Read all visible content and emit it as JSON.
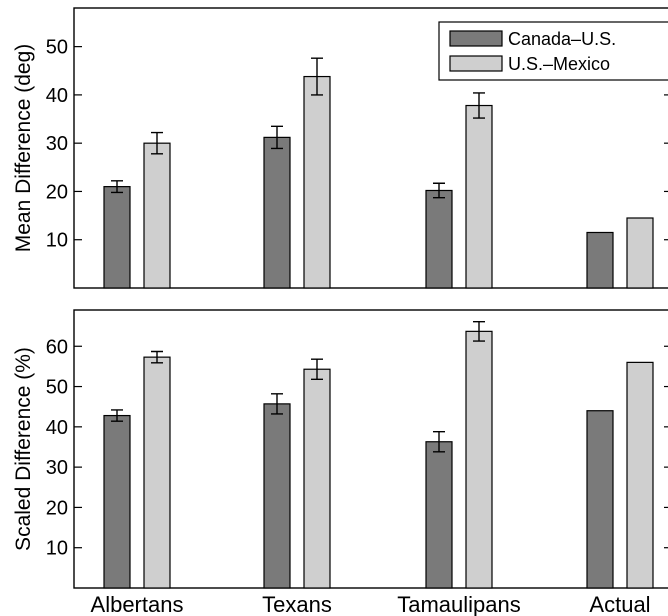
{
  "chart_data": [
    {
      "type": "bar",
      "categories": [
        "Albertans",
        "Texans",
        "Tamaulipans",
        "Actual"
      ],
      "ylabel": "Mean Difference (deg)",
      "ylim": [
        0,
        58
      ],
      "yticks": [
        10,
        20,
        30,
        40,
        50
      ],
      "grid": false,
      "legend_position": "top-right",
      "series": [
        {
          "name": "Canada–U.S.",
          "color": "#7a7a7a",
          "values": [
            21,
            31.2,
            20.2,
            11.5
          ],
          "errors": [
            1.2,
            2.3,
            1.5,
            null
          ]
        },
        {
          "name": "U.S.–Mexico",
          "color": "#cfcfcf",
          "values": [
            30,
            43.8,
            37.8,
            14.5
          ],
          "errors": [
            2.2,
            3.8,
            2.6,
            null
          ]
        }
      ]
    },
    {
      "type": "bar",
      "categories": [
        "Albertans",
        "Texans",
        "Tamaulipans",
        "Actual"
      ],
      "ylabel": "Scaled Difference (%)",
      "ylim": [
        0,
        69
      ],
      "yticks": [
        10,
        20,
        30,
        40,
        50,
        60
      ],
      "grid": false,
      "series": [
        {
          "name": "Canada–U.S.",
          "color": "#7a7a7a",
          "values": [
            42.8,
            45.7,
            36.3,
            44
          ],
          "errors": [
            1.4,
            2.5,
            2.5,
            null
          ]
        },
        {
          "name": "U.S.–Mexico",
          "color": "#cfcfcf",
          "values": [
            57.3,
            54.3,
            63.7,
            56
          ],
          "errors": [
            1.4,
            2.5,
            2.4,
            null
          ]
        }
      ]
    }
  ]
}
